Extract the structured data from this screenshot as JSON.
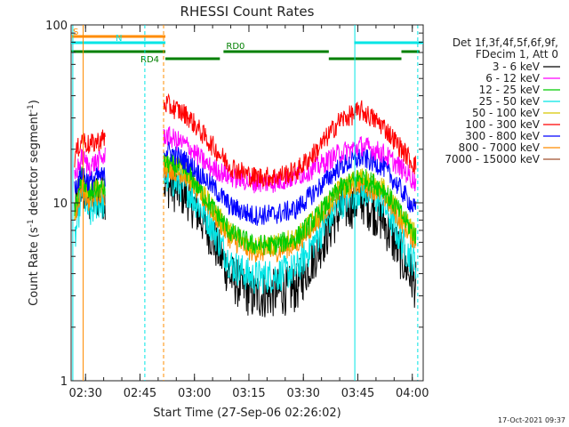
{
  "chart_data": {
    "type": "line",
    "title": "RHESSI Count Rates",
    "xlabel": "Start Time (27-Sep-06 02:26:02)",
    "ylabel": "Count Rate (s",
    "ylabel_sup1": "-1",
    "ylabel_mid": " detector segment",
    "ylabel_sup2": "-1",
    "ylabel_end": ")",
    "x_range": [
      "02:26:02",
      "04:03:00"
    ],
    "y_scale": "log",
    "ylim": [
      1,
      100
    ],
    "x_ticks": [
      "02:30",
      "02:45",
      "03:00",
      "03:15",
      "03:30",
      "03:45",
      "04:00"
    ],
    "y_ticks": [
      "1",
      "10",
      "100"
    ],
    "legend_header": [
      "Det 1f,3f,4f,5f,6f,9f,",
      "FDecim 1, Att 0"
    ],
    "legend_placement": "right",
    "timestamp": "17-Oct-2021 09:37",
    "series": [
      {
        "name": "3 - 6 keV",
        "color": "#000000",
        "x": [
          "02:27",
          "02:29",
          "02:31",
          "02:33",
          "02:35",
          "02:52",
          "02:58",
          "03:04",
          "03:10",
          "03:16",
          "03:22",
          "03:28",
          "03:34",
          "03:40",
          "03:46",
          "03:52",
          "03:58",
          "04:01"
        ],
        "y": [
          9,
          13,
          10,
          11,
          11,
          13,
          11,
          7,
          3.8,
          3.0,
          3.1,
          3.3,
          5.5,
          9.0,
          10.5,
          8.0,
          4.5,
          3.4
        ]
      },
      {
        "name": "6 - 12 keV",
        "color": "#ff00ff",
        "x": [
          "02:27",
          "02:29",
          "02:31",
          "02:33",
          "02:35",
          "02:52",
          "02:58",
          "03:04",
          "03:10",
          "03:16",
          "03:22",
          "03:28",
          "03:34",
          "03:40",
          "03:46",
          "03:52",
          "03:58",
          "04:01"
        ],
        "y": [
          14,
          18,
          16,
          17,
          18,
          24,
          21,
          16,
          14,
          13,
          13,
          14,
          16,
          19,
          21,
          19,
          15,
          13
        ]
      },
      {
        "name": "12 - 25 keV",
        "color": "#00cc00",
        "x": [
          "02:27",
          "02:29",
          "02:31",
          "02:33",
          "02:35",
          "02:52",
          "02:58",
          "03:04",
          "03:10",
          "03:16",
          "03:22",
          "03:28",
          "03:34",
          "03:40",
          "03:46",
          "03:52",
          "03:58",
          "04:01"
        ],
        "y": [
          9,
          14,
          11,
          12,
          12,
          17,
          15,
          10,
          6.8,
          5.8,
          5.8,
          6.3,
          8.5,
          12,
          14,
          12,
          8,
          6.5
        ]
      },
      {
        "name": "25 - 50 keV",
        "color": "#00e5e5",
        "x": [
          "02:27",
          "02:29",
          "02:31",
          "02:33",
          "02:35",
          "02:52",
          "02:58",
          "03:04",
          "03:10",
          "03:16",
          "03:22",
          "03:28",
          "03:34",
          "03:40",
          "03:46",
          "03:52",
          "03:58",
          "04:01"
        ],
        "y": [
          6,
          12,
          8.5,
          10,
          10,
          14,
          12,
          8,
          4.5,
          3.8,
          3.9,
          4.2,
          6.5,
          10,
          12,
          10,
          5.5,
          4.6
        ]
      },
      {
        "name": "50 - 100 keV",
        "color": "#d8c800",
        "x": [
          "02:27",
          "02:29",
          "02:31",
          "02:33",
          "02:35",
          "02:52",
          "02:58",
          "03:04",
          "03:10",
          "03:16",
          "03:22",
          "03:28",
          "03:34",
          "03:40",
          "03:46",
          "03:52",
          "03:58",
          "04:01"
        ],
        "y": [
          9,
          14,
          11,
          12,
          12,
          17,
          15,
          10,
          6.8,
          5.8,
          5.8,
          6.3,
          8.5,
          12,
          14,
          12,
          8,
          6.5
        ]
      },
      {
        "name": "100 - 300 keV",
        "color": "#ff0000",
        "x": [
          "02:27",
          "02:29",
          "02:31",
          "02:33",
          "02:35",
          "02:52",
          "02:58",
          "03:04",
          "03:10",
          "03:16",
          "03:22",
          "03:28",
          "03:34",
          "03:40",
          "03:46",
          "03:52",
          "03:58",
          "04:01"
        ],
        "y": [
          18,
          23,
          21,
          22,
          23,
          36,
          31,
          22,
          16,
          14,
          14,
          15,
          20,
          29,
          33,
          27,
          19,
          16
        ]
      },
      {
        "name": "300 - 800 keV",
        "color": "#0000ff",
        "x": [
          "02:27",
          "02:29",
          "02:31",
          "02:33",
          "02:35",
          "02:52",
          "02:58",
          "03:04",
          "03:10",
          "03:16",
          "03:22",
          "03:28",
          "03:34",
          "03:40",
          "03:46",
          "03:52",
          "03:58",
          "04:01"
        ],
        "y": [
          12,
          15,
          13,
          14,
          14,
          20,
          17,
          13,
          9.5,
          8.5,
          8.6,
          9.2,
          12,
          16,
          18,
          16,
          11,
          9
        ]
      },
      {
        "name": "800 - 7000 keV",
        "color": "#ff8c00",
        "x": [
          "02:27",
          "02:29",
          "02:31",
          "02:33",
          "02:35",
          "02:52",
          "02:58",
          "03:04",
          "03:10",
          "03:16",
          "03:22",
          "03:28",
          "03:34",
          "03:40",
          "03:46",
          "03:52",
          "03:58",
          "04:01"
        ],
        "y": [
          8,
          12.5,
          10,
          11,
          11,
          16,
          14,
          9.5,
          6.2,
          5.3,
          5.3,
          5.8,
          8,
          11.5,
          13,
          11,
          7.3,
          6
        ]
      },
      {
        "name": "7000 - 15000 keV",
        "color": "#a0522d",
        "x": [],
        "y": []
      }
    ],
    "segments": [
      {
        "label": "S",
        "color": "#ff8c00",
        "row": 0,
        "t0": "02:26:02",
        "t1": "02:52:00"
      },
      {
        "label": "N",
        "color": "#00e5e5",
        "row": 1,
        "t0": "02:26:02",
        "t1": "02:52:00"
      },
      {
        "label": "",
        "color": "#00e5e5",
        "row": 1,
        "t0": "03:44:00",
        "t1": "04:03:00"
      },
      {
        "label": "",
        "color": "#008000",
        "row": 2,
        "t0": "02:26:02",
        "t1": "02:52:00"
      },
      {
        "label": "RD4",
        "color": "#008000",
        "row": 3,
        "t0": "02:52:00",
        "t1": "03:07:00"
      },
      {
        "label": "RD0",
        "color": "#008000",
        "row": 2,
        "t0": "03:08:00",
        "t1": "03:37:00"
      },
      {
        "label": "",
        "color": "#008000",
        "row": 3,
        "t0": "03:37:00",
        "t1": "03:57:00"
      },
      {
        "label": "",
        "color": "#008000",
        "row": 2,
        "t0": "03:57:00",
        "t1": "04:02:00"
      }
    ]
  }
}
